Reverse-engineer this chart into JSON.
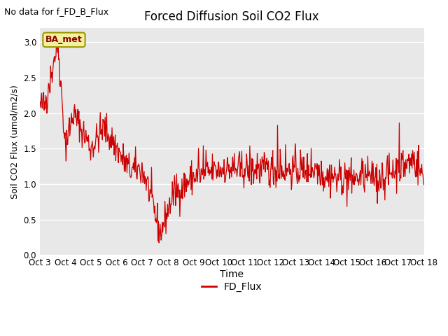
{
  "title": "Forced Diffusion Soil CO2 Flux",
  "xlabel": "Time",
  "ylabel": "Soil CO2 Flux (umol/m2/s)",
  "no_data_text": "No data for f_FD_B_Flux",
  "legend_label": "FD_Flux",
  "line_color": "#cc0000",
  "bg_color": "#e8e8e8",
  "ylim": [
    0.0,
    3.2
  ],
  "yticks": [
    0.0,
    0.5,
    1.0,
    1.5,
    2.0,
    2.5,
    3.0
  ],
  "annotation_text": "BA_met",
  "x_tick_labels": [
    "Oct 3",
    "Oct 4",
    "Oct 5",
    "Oct 6",
    "Oct 7",
    "Oct 8",
    "Oct 9",
    "Oct 10",
    "Oct 11",
    "Oct 12",
    "Oct 13",
    "Oct 14",
    "Oct 15",
    "Oct 16",
    "Oct 17",
    "Oct 18"
  ],
  "seed": 42
}
